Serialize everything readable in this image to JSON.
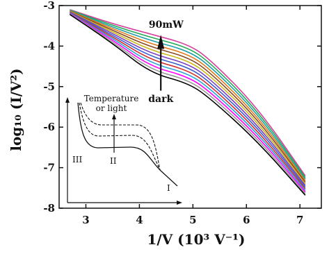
{
  "chart_data": {
    "type": "line",
    "xlabel": "1/V (10³ V⁻¹)",
    "ylabel": "log₁₀ (I/V²)",
    "xlim": [
      2.5,
      7.4
    ],
    "ylim": [
      -8,
      -3
    ],
    "xticks": [
      3,
      4,
      5,
      6,
      7
    ],
    "yticks": [
      -3,
      -4,
      -5,
      -6,
      -7,
      -8
    ],
    "grid": false,
    "annotations": {
      "top": "90mW",
      "bottom": "dark"
    },
    "series": [
      {
        "color": "#d6409f",
        "points": [
          [
            2.7,
            -3.1
          ],
          [
            3.5,
            -3.45
          ],
          [
            4.2,
            -3.7
          ],
          [
            4.9,
            -3.95
          ],
          [
            5.3,
            -4.3
          ],
          [
            6.2,
            -5.5
          ],
          [
            7.1,
            -7.2
          ]
        ]
      },
      {
        "color": "#22aa55",
        "points": [
          [
            2.7,
            -3.11
          ],
          [
            3.5,
            -3.49
          ],
          [
            4.2,
            -3.78
          ],
          [
            4.9,
            -4.03
          ],
          [
            5.3,
            -4.38
          ],
          [
            6.2,
            -5.57
          ],
          [
            7.1,
            -7.24
          ]
        ]
      },
      {
        "color": "#1ca0a8",
        "points": [
          [
            2.7,
            -3.12
          ],
          [
            3.5,
            -3.53
          ],
          [
            4.2,
            -3.86
          ],
          [
            4.9,
            -4.11
          ],
          [
            5.3,
            -4.46
          ],
          [
            6.2,
            -5.64
          ],
          [
            7.1,
            -7.28
          ]
        ]
      },
      {
        "color": "#e07b1a",
        "points": [
          [
            2.7,
            -3.13
          ],
          [
            3.5,
            -3.57
          ],
          [
            4.2,
            -3.94
          ],
          [
            4.9,
            -4.19
          ],
          [
            5.3,
            -4.54
          ],
          [
            6.2,
            -5.71
          ],
          [
            7.1,
            -7.32
          ]
        ]
      },
      {
        "color": "#8a4a20",
        "points": [
          [
            2.7,
            -3.14
          ],
          [
            3.5,
            -3.61
          ],
          [
            4.2,
            -4.02
          ],
          [
            4.9,
            -4.27
          ],
          [
            5.3,
            -4.62
          ],
          [
            6.2,
            -5.78
          ],
          [
            7.1,
            -7.36
          ]
        ]
      },
      {
        "color": "#c8b81e",
        "points": [
          [
            2.7,
            -3.15
          ],
          [
            3.5,
            -3.65
          ],
          [
            4.2,
            -4.1
          ],
          [
            4.9,
            -4.35
          ],
          [
            5.3,
            -4.7
          ],
          [
            6.2,
            -5.85
          ],
          [
            7.1,
            -7.4
          ]
        ]
      },
      {
        "color": "#7a3fc0",
        "points": [
          [
            2.7,
            -3.16
          ],
          [
            3.5,
            -3.69
          ],
          [
            4.2,
            -4.18
          ],
          [
            4.9,
            -4.43
          ],
          [
            5.3,
            -4.78
          ],
          [
            6.2,
            -5.92
          ],
          [
            7.1,
            -7.44
          ]
        ]
      },
      {
        "color": "#3a5fd0",
        "points": [
          [
            2.7,
            -3.17
          ],
          [
            3.5,
            -3.73
          ],
          [
            4.2,
            -4.26
          ],
          [
            4.9,
            -4.51
          ],
          [
            5.3,
            -4.86
          ],
          [
            6.2,
            -5.99
          ],
          [
            7.1,
            -7.48
          ]
        ]
      },
      {
        "color": "#d03030",
        "points": [
          [
            2.7,
            -3.18
          ],
          [
            3.5,
            -3.77
          ],
          [
            4.2,
            -4.34
          ],
          [
            4.9,
            -4.59
          ],
          [
            5.3,
            -4.94
          ],
          [
            6.2,
            -6.06
          ],
          [
            7.1,
            -7.52
          ]
        ]
      },
      {
        "color": "#2aa0d8",
        "points": [
          [
            2.7,
            -3.19
          ],
          [
            3.5,
            -3.81
          ],
          [
            4.2,
            -4.42
          ],
          [
            4.9,
            -4.67
          ],
          [
            5.3,
            -5.02
          ],
          [
            6.2,
            -6.13
          ],
          [
            7.1,
            -7.56
          ]
        ]
      },
      {
        "color": "#ff00ff",
        "points": [
          [
            2.7,
            -3.2
          ],
          [
            3.5,
            -3.85
          ],
          [
            4.2,
            -4.5
          ],
          [
            4.9,
            -4.75
          ],
          [
            5.3,
            -5.1
          ],
          [
            6.2,
            -6.2
          ],
          [
            7.1,
            -7.6
          ]
        ]
      },
      {
        "color": "#999999",
        "points": [
          [
            2.7,
            -3.21
          ],
          [
            3.5,
            -3.89
          ],
          [
            4.2,
            -4.58
          ],
          [
            4.9,
            -4.83
          ],
          [
            5.3,
            -5.18
          ],
          [
            6.2,
            -6.27
          ],
          [
            7.1,
            -7.64
          ]
        ]
      },
      {
        "color": "#000000",
        "points": [
          [
            2.7,
            -3.22
          ],
          [
            3.5,
            -3.93
          ],
          [
            4.2,
            -4.66
          ],
          [
            4.9,
            -4.91
          ],
          [
            5.3,
            -5.26
          ],
          [
            6.2,
            -6.34
          ],
          [
            7.1,
            -7.68
          ]
        ]
      }
    ],
    "inset": {
      "label_top": "Temperature",
      "label_top2": "or light",
      "region_labels": [
        "III",
        "II",
        "I"
      ]
    }
  }
}
